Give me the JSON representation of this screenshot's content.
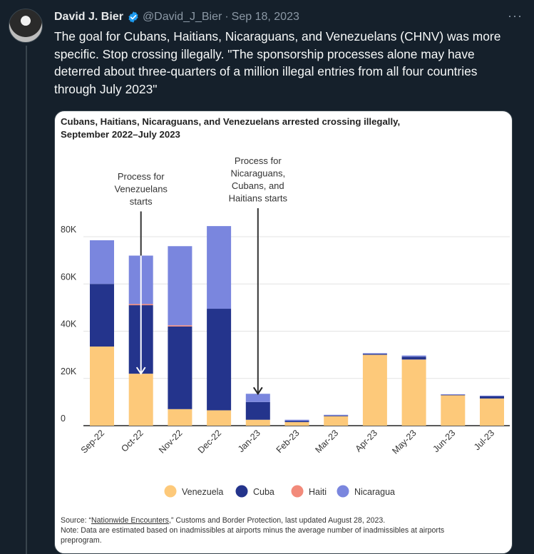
{
  "tweet": {
    "author_name": "David J. Bier",
    "handle": "@David_J_Bier",
    "separator": "·",
    "date": "Sep 18, 2023",
    "more_icon": "more-horizontal-icon",
    "verified_icon": "verified-badge-icon",
    "verified_color": "#1d9bf0",
    "text": "The goal for Cubans, Haitians, Nicaraguans, and Venezuelans (CHNV) was more specific. Stop crossing illegally. \"The sponsorship processes alone may have deterred about three-quarters of a million illegal entries from all four countries through July 2023\""
  },
  "chart_data": {
    "type": "bar",
    "stacked": true,
    "title": "Cubans, Haitians, Nicaraguans, and Venezuelans arrested crossing illegally,",
    "title_line2": "September 2022–July 2023",
    "categories": [
      "Sep-22",
      "Oct-22",
      "Nov-22",
      "Dec-22",
      "Jan-23",
      "Feb-23",
      "Mar-23",
      "Apr-23",
      "May-23",
      "Jun-23",
      "Jul-23"
    ],
    "series": [
      {
        "name": "Venezuela",
        "color": "#fdc97a",
        "values": [
          33500,
          22000,
          7000,
          6500,
          2500,
          1500,
          4000,
          30000,
          28000,
          13000,
          11500
        ]
      },
      {
        "name": "Cuba",
        "color": "#24348c",
        "values": [
          26500,
          29000,
          35000,
          43000,
          7500,
          500,
          300,
          400,
          1200,
          100,
          1000
        ]
      },
      {
        "name": "Haiti",
        "color": "#f28a7a",
        "values": [
          0,
          500,
          500,
          0,
          0,
          0,
          0,
          0,
          0,
          0,
          0
        ]
      },
      {
        "name": "Nicaragua",
        "color": "#7a86de",
        "values": [
          18500,
          20500,
          33500,
          35000,
          3500,
          500,
          300,
          300,
          500,
          200,
          200
        ]
      }
    ],
    "ylim": [
      0,
      85000
    ],
    "yticks": [
      {
        "v": 0,
        "label": "0"
      },
      {
        "v": 20000,
        "label": "20K"
      },
      {
        "v": 40000,
        "label": "40K"
      },
      {
        "v": 60000,
        "label": "60K"
      },
      {
        "v": 80000,
        "label": "80K"
      }
    ],
    "grid": true,
    "legend_position": "bottom",
    "annotations": [
      {
        "category_index": 1,
        "lines": [
          "Process for",
          "Venezuelans",
          "starts"
        ],
        "arrow_to": 22000
      },
      {
        "category_index": 4,
        "lines": [
          "Process for",
          "Nicaraguans,",
          "Cubans, and",
          "Haitians starts"
        ],
        "arrow_to": 13500
      }
    ],
    "source_prefix": "Source: “",
    "source_link": "Nationwide Encounters",
    "source_suffix": ",” Customs and Border Protection, last updated August 28, 2023.",
    "note_line1": "Note: Data are estimated based on inadmissibles at airports minus the average number of inadmissibles at airports",
    "note_line2": "preprogram."
  }
}
